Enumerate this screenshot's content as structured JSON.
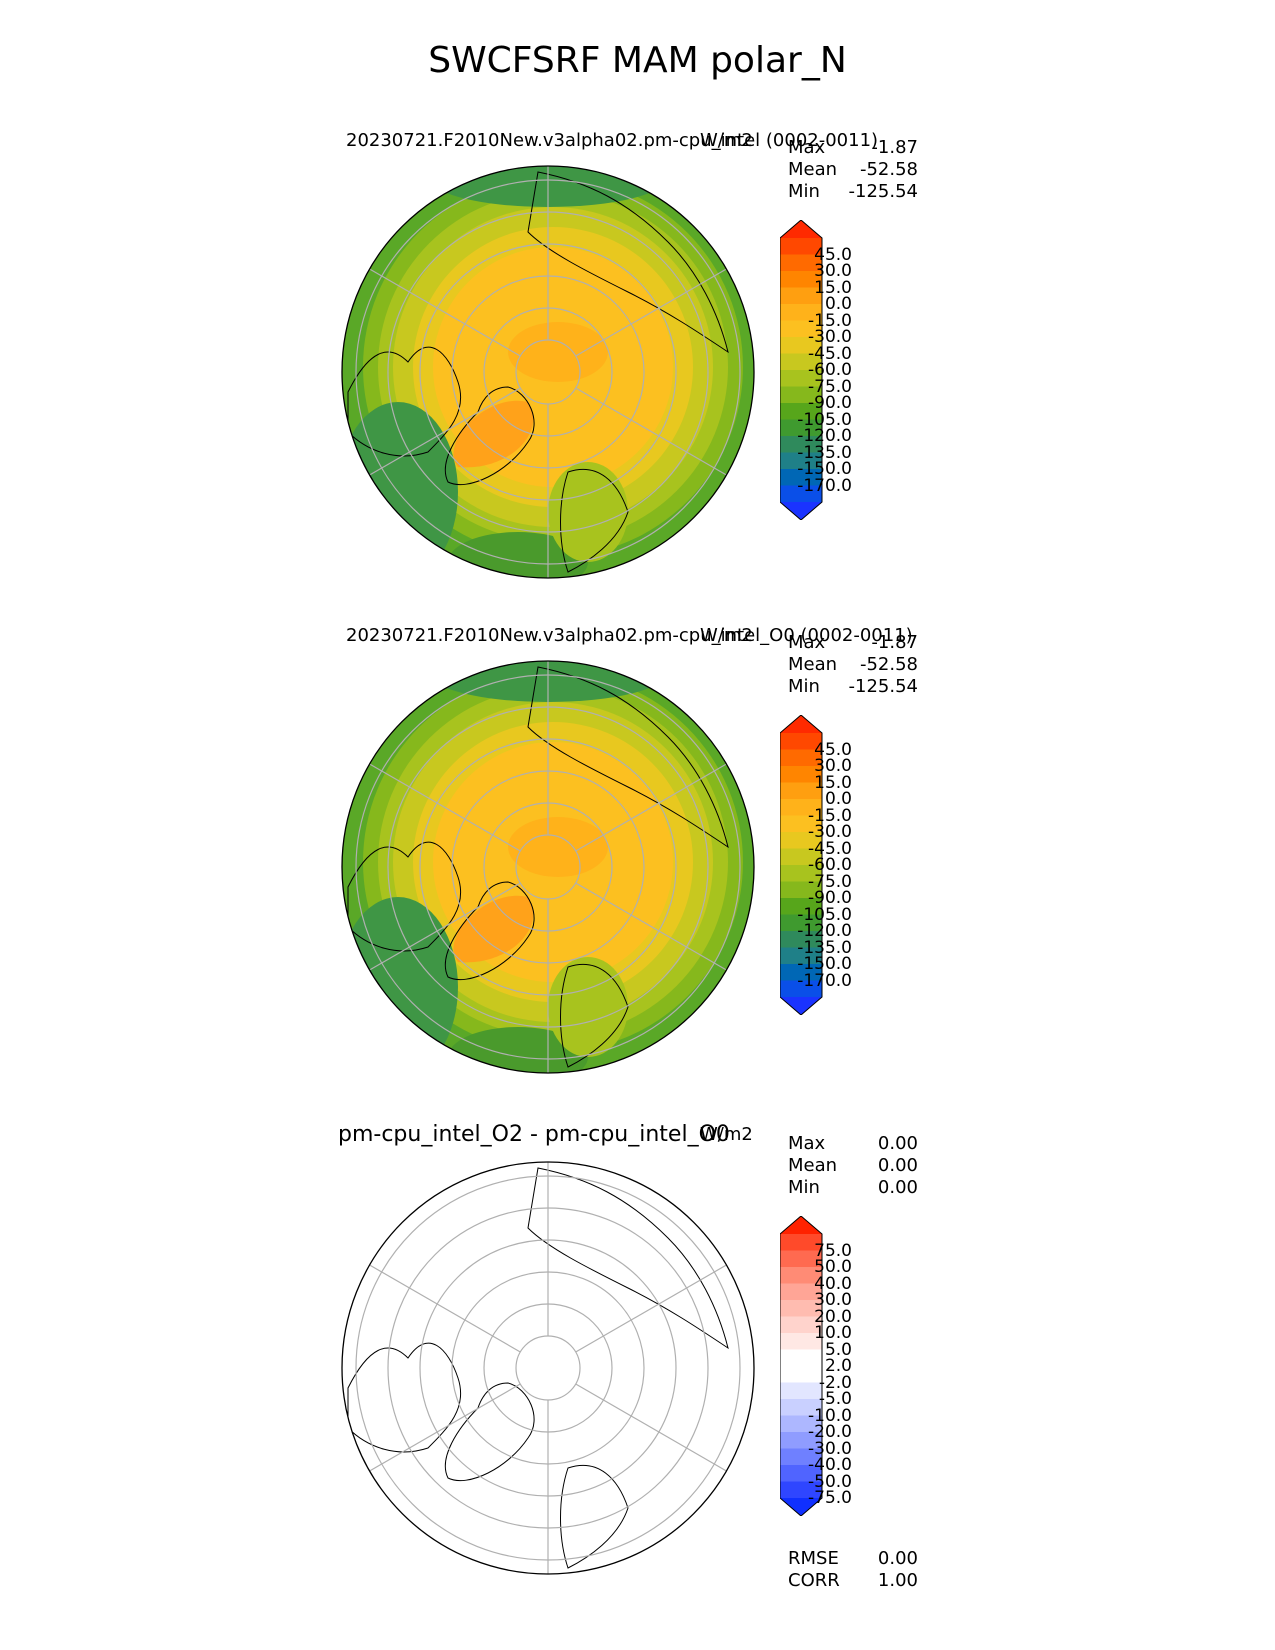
{
  "figure_title": "SWCFSRF MAM polar_N",
  "panels": [
    {
      "title": "20230721.F2010New.v3alpha02.pm-cpu_intel (0002-0011)",
      "units": "W/m2",
      "stats": [
        {
          "label": "Max",
          "value": "-1.87"
        },
        {
          "label": "Mean",
          "value": "-52.58"
        },
        {
          "label": "Min",
          "value": "-125.54"
        }
      ],
      "colorbar": {
        "ticks": [
          "45.0",
          "30.0",
          "15.0",
          "0.0",
          "-15.0",
          "-30.0",
          "-45.0",
          "-60.0",
          "-75.0",
          "-90.0",
          "-105.0",
          "-120.0",
          "-135.0",
          "-150.0",
          "-170.0"
        ],
        "colors": [
          "#ff2a00",
          "#ff4800",
          "#ff6a00",
          "#ff8500",
          "#ff9f10",
          "#ffb21a",
          "#fcc020",
          "#e8c81f",
          "#c8c81f",
          "#a8c31e",
          "#86b81c",
          "#57a61b",
          "#3f9a2f",
          "#2f8a5c",
          "#1f8088",
          "#0067b5",
          "#0a4fe8",
          "#1a33ff"
        ]
      }
    },
    {
      "title": "20230721.F2010New.v3alpha02.pm-cpu_intel_O0 (0002-0011)",
      "units": "W/m2",
      "stats": [
        {
          "label": "Max",
          "value": "-1.87"
        },
        {
          "label": "Mean",
          "value": "-52.58"
        },
        {
          "label": "Min",
          "value": "-125.54"
        }
      ],
      "colorbar": {
        "ticks": [
          "45.0",
          "30.0",
          "15.0",
          "0.0",
          "-15.0",
          "-30.0",
          "-45.0",
          "-60.0",
          "-75.0",
          "-90.0",
          "-105.0",
          "-120.0",
          "-135.0",
          "-150.0",
          "-170.0"
        ],
        "colors": [
          "#ff2a00",
          "#ff4800",
          "#ff6a00",
          "#ff8500",
          "#ff9f10",
          "#ffb21a",
          "#fcc020",
          "#e8c81f",
          "#c8c81f",
          "#a8c31e",
          "#86b81c",
          "#57a61b",
          "#3f9a2f",
          "#2f8a5c",
          "#1f8088",
          "#0067b5",
          "#0a4fe8",
          "#1a33ff"
        ]
      }
    },
    {
      "title": "pm-cpu_intel_O2 - pm-cpu_intel_O0",
      "units": "W/m2",
      "stats": [
        {
          "label": "Max",
          "value": "0.00"
        },
        {
          "label": "Mean",
          "value": "0.00"
        },
        {
          "label": "Min",
          "value": "0.00"
        }
      ],
      "colorbar": {
        "ticks": [
          "75.0",
          "50.0",
          "40.0",
          "30.0",
          "20.0",
          "10.0",
          "5.0",
          "2.0",
          "-2.0",
          "-5.0",
          "-10.0",
          "-20.0",
          "-30.0",
          "-40.0",
          "-50.0",
          "-75.0"
        ],
        "colors": [
          "#ff2200",
          "#ff4a2a",
          "#ff6a50",
          "#ff8b75",
          "#ffa596",
          "#ffbcb0",
          "#ffd3cc",
          "#ffe8e4",
          "#ffffff",
          "#ffffff",
          "#e2e6ff",
          "#c9d0ff",
          "#adb7ff",
          "#8f9cff",
          "#6f80ff",
          "#5064ff",
          "#2f46ff",
          "#1030ff"
        ]
      },
      "bottom_stats": [
        {
          "label": "RMSE",
          "value": "0.00"
        },
        {
          "label": "CORR",
          "value": "1.00"
        }
      ]
    }
  ]
}
